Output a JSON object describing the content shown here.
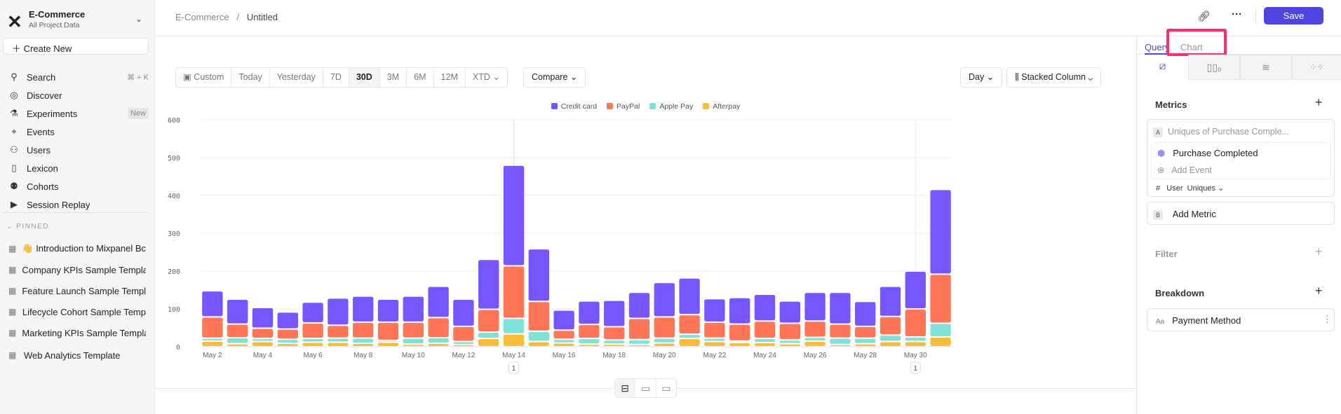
{
  "sidebar": {
    "project": "E-Commerce",
    "subtitle": "All Project Data",
    "create_new": "Create New",
    "nav": [
      {
        "label": "Search",
        "icon": "search-icon",
        "extra": "⌘ + K"
      },
      {
        "label": "Discover",
        "icon": "compass-icon"
      },
      {
        "label": "Experiments",
        "icon": "flask-icon",
        "badge": "New"
      },
      {
        "label": "Events",
        "icon": "cursor-click-icon"
      },
      {
        "label": "Users",
        "icon": "users-icon"
      },
      {
        "label": "Lexicon",
        "icon": "book-icon"
      },
      {
        "label": "Cohorts",
        "icon": "cohorts-icon"
      },
      {
        "label": "Session Replay",
        "icon": "play-icon"
      }
    ],
    "pinned_label": "PINNED",
    "pinned": [
      {
        "label": "👋 Introduction to Mixpanel Bc"
      },
      {
        "label": "Company KPIs Sample Templat"
      },
      {
        "label": "Feature Launch Sample Templa"
      },
      {
        "label": "Lifecycle Cohort Sample Temp"
      },
      {
        "label": "Marketing KPIs Sample Templat"
      },
      {
        "label": "Web Analytics Template"
      }
    ]
  },
  "header": {
    "breadcrumb_root": "E-Commerce",
    "separator": "/",
    "title": "Untitled",
    "save": "Save"
  },
  "toolbar": {
    "ranges": [
      "Custom",
      "Today",
      "Yesterday",
      "7D",
      "30D",
      "3M",
      "6M",
      "12M",
      "XTD"
    ],
    "selected": "30D",
    "compare": "Compare",
    "interval": "Day",
    "chart_type": "Stacked Column"
  },
  "panel": {
    "tabs": [
      "Query",
      "Chart"
    ],
    "active_tab": "Query",
    "metrics_title": "Metrics",
    "metric_a_letter": "A",
    "metric_a_name": "Uniques of Purchase Comple...",
    "event": "Purchase Completed",
    "add_event": "Add Event",
    "measure_hash": "#",
    "measure_user": "User",
    "measure_type": "Uniques",
    "metric_b_letter": "B",
    "add_metric": "Add Metric",
    "filter": "Filter",
    "breakdown": "Breakdown",
    "breakdown_item_prefix": "Aa",
    "breakdown_item": "Payment Method"
  },
  "colors": {
    "accent": "#4f44e0",
    "highlight": "#ff2d6f"
  },
  "chart_data": {
    "type": "bar",
    "stacked": true,
    "legend": "top",
    "grid": true,
    "ylim": [
      0,
      600
    ],
    "yticks": [
      0,
      100,
      200,
      300,
      400,
      500,
      600
    ],
    "categories": [
      "May 2",
      "May 3",
      "May 4",
      "May 5",
      "May 6",
      "May 7",
      "May 8",
      "May 9",
      "May 10",
      "May 11",
      "May 12",
      "May 13",
      "May 14",
      "May 15",
      "May 16",
      "May 17",
      "May 18",
      "May 19",
      "May 20",
      "May 21",
      "May 22",
      "May 23",
      "May 24",
      "May 25",
      "May 26",
      "May 27",
      "May 28",
      "May 29",
      "May 30",
      "May 31"
    ],
    "xtick_labels": [
      "May 2",
      "May 4",
      "May 6",
      "May 8",
      "May 10",
      "May 12",
      "May 14",
      "May 16",
      "May 18",
      "May 20",
      "May 22",
      "May 24",
      "May 26",
      "May 28",
      "May 30"
    ],
    "annotations": [
      {
        "x": "May 14",
        "label": "1"
      },
      {
        "x": "May 30",
        "label": "1"
      }
    ],
    "series": [
      {
        "name": "Afterpay",
        "color": "#f8bc3b",
        "values": [
          15,
          8,
          14,
          9,
          12,
          12,
          9,
          12,
          7,
          9,
          6,
          22,
          34,
          14,
          10,
          7,
          7,
          6,
          10,
          22,
          14,
          11,
          11,
          8,
          15,
          6,
          8,
          14,
          14,
          26
        ]
      },
      {
        "name": "Apple Pay",
        "color": "#80e1d9",
        "values": [
          8,
          16,
          8,
          11,
          10,
          11,
          14,
          5,
          16,
          15,
          8,
          17,
          41,
          27,
          10,
          15,
          11,
          13,
          13,
          11,
          9,
          4,
          11,
          10,
          10,
          17,
          15,
          17,
          12,
          36
        ]
      },
      {
        "name": "PayPal",
        "color": "#ff7557",
        "values": [
          56,
          36,
          27,
          27,
          41,
          34,
          42,
          48,
          42,
          53,
          40,
          60,
          139,
          79,
          24,
          37,
          35,
          56,
          56,
          52,
          42,
          45,
          46,
          44,
          43,
          37,
          31,
          49,
          74,
          130
        ]
      },
      {
        "name": "Credit card",
        "color": "#7856ff",
        "values": [
          69,
          66,
          55,
          45,
          55,
          72,
          69,
          61,
          69,
          83,
          72,
          132,
          266,
          139,
          53,
          62,
          70,
          69,
          91,
          97,
          62,
          70,
          71,
          59,
          76,
          84,
          66,
          80,
          100,
          224
        ]
      }
    ],
    "legend_order": [
      "Credit card",
      "PayPal",
      "Apple Pay",
      "Afterpay"
    ]
  }
}
